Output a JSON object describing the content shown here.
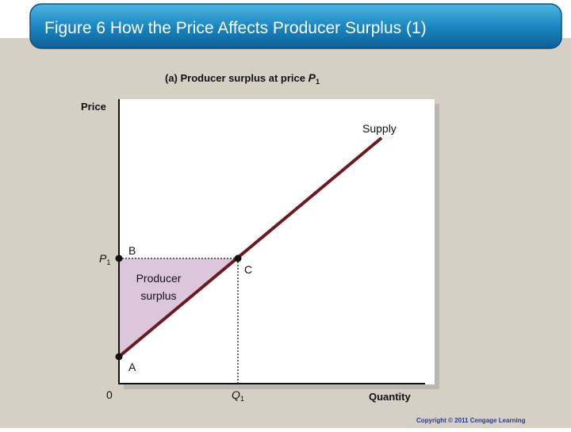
{
  "title": "Figure 6 How the Price Affects Producer Surplus (1)",
  "subtitle": {
    "text": "(a)  Producer surplus at price",
    "symbol": "P",
    "subscript": "1"
  },
  "axes": {
    "y_label": "Price",
    "x_label": "Quantity",
    "origin": "0",
    "price_mark": {
      "symbol": "P",
      "subscript": "1"
    },
    "quantity_mark": {
      "symbol": "Q",
      "subscript": "1"
    }
  },
  "curve_label": "Supply",
  "points": [
    "B",
    "C",
    "A"
  ],
  "region_label": [
    "Producer",
    "surplus"
  ],
  "copyright": "Copyright  © 2011  Cengage Learning"
}
